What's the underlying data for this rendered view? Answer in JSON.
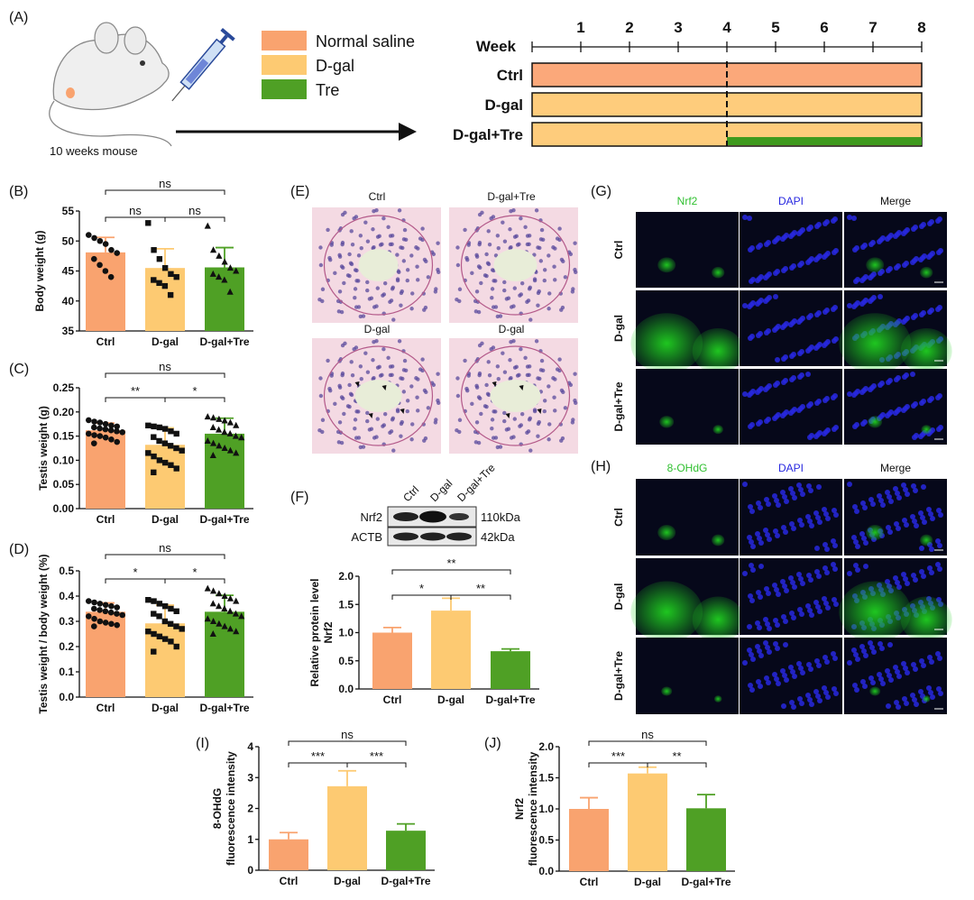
{
  "colors": {
    "saline": "#F9A36F",
    "dgal": "#FDCA72",
    "tre": "#4FA025",
    "tl_ctrl": "#FBA87A",
    "tl_dgal": "#FECC7C",
    "tl_tre": "#3F9A1E",
    "hist_bg": "#F4DAE3",
    "fluor_bg": "#06081a",
    "green": "#30C030",
    "blue": "#2828E0",
    "plain_label": "#111111"
  },
  "panel_labels": {
    "A": "(A)",
    "B": "(B)",
    "C": "(C)",
    "D": "(D)",
    "E": "(E)",
    "F": "(F)",
    "G": "(G)",
    "H": "(H)",
    "I": "(I)",
    "J": "(J)"
  },
  "panel_a": {
    "mouse_label": "10 weeks mouse",
    "legend": [
      {
        "label": "Normal saline",
        "color": "#F9A36F"
      },
      {
        "label": "D-gal",
        "color": "#FDCA72"
      },
      {
        "label": "Tre",
        "color": "#4FA025"
      }
    ],
    "timeline": {
      "axis_label": "Week",
      "weeks": [
        "1",
        "2",
        "3",
        "4",
        "5",
        "6",
        "7",
        "8"
      ],
      "rows": [
        {
          "label": "Ctrl",
          "segments": [
            {
              "from": 0,
              "to": 8,
              "color": "#FBA87A"
            }
          ]
        },
        {
          "label": "D-gal",
          "segments": [
            {
              "from": 0,
              "to": 8,
              "color": "#FECC7C"
            }
          ]
        },
        {
          "label": "D-gal+Tre",
          "segments": [
            {
              "from": 0,
              "to": 8,
              "color": "#FECC7C"
            },
            {
              "from": 4,
              "to": 8,
              "color": "#3F9A1E"
            }
          ]
        }
      ],
      "divider_week": 4
    }
  },
  "panel_e": {
    "labels": [
      "Ctrl",
      "D-gal+Tre",
      "D-gal",
      "D-gal"
    ]
  },
  "panel_f": {
    "lanes": [
      "Ctrl",
      "D-gal",
      "D-gal+Tre"
    ],
    "rows": [
      {
        "name": "Nrf2",
        "size": "110kDa"
      },
      {
        "name": "ACTB",
        "size": "42kDa"
      }
    ]
  },
  "panel_g": {
    "columns": [
      "Nrf2",
      "DAPI",
      "Merge"
    ],
    "rows": [
      "Ctrl",
      "D-gal",
      "D-gal+Tre"
    ]
  },
  "panel_h": {
    "columns": [
      "8-OHdG",
      "DAPI",
      "Merge"
    ],
    "rows": [
      "Ctrl",
      "D-gal",
      "D-gal+Tre"
    ]
  },
  "chart_data": [
    {
      "id": "B",
      "type": "bar",
      "categories": [
        "Ctrl",
        "D-gal",
        "D-gal+Tre"
      ],
      "values": [
        48.1,
        45.5,
        45.6
      ],
      "errors": [
        2.5,
        3.2,
        3.3
      ],
      "ylabel": "Body weight (g)",
      "ylim": [
        35,
        55
      ],
      "yticks": [
        "35",
        "40",
        "45",
        "50",
        "55"
      ],
      "points": [
        [
          51,
          50.5,
          50,
          49.5,
          48.5,
          48,
          47,
          46,
          45,
          44
        ],
        [
          53,
          48.5,
          47,
          45.5,
          44.5,
          44,
          43.5,
          43,
          42.5,
          41
        ],
        [
          52.5,
          48.5,
          47.5,
          46.5,
          45.5,
          45,
          44.5,
          44,
          43.5,
          41.5
        ]
      ],
      "significance": [
        {
          "from": 0,
          "to": 1,
          "label": "ns"
        },
        {
          "from": 1,
          "to": 2,
          "label": "ns"
        },
        {
          "from": 0,
          "to": 2,
          "label": "ns"
        }
      ]
    },
    {
      "id": "C",
      "type": "bar",
      "categories": [
        "Ctrl",
        "D-gal",
        "D-gal+Tre"
      ],
      "values": [
        0.162,
        0.132,
        0.155
      ],
      "errors": [
        0.015,
        0.035,
        0.032
      ],
      "ylabel": "Testis weight (g)",
      "ylim": [
        0,
        0.25
      ],
      "yticks": [
        "0.00",
        "0.05",
        "0.10",
        "0.15",
        "0.20",
        "0.25"
      ],
      "points": [
        [
          0.183,
          0.18,
          0.178,
          0.175,
          0.172,
          0.17,
          0.168,
          0.166,
          0.164,
          0.162,
          0.16,
          0.158,
          0.155,
          0.152,
          0.15,
          0.147,
          0.143,
          0.138,
          0.135
        ],
        [
          0.172,
          0.17,
          0.168,
          0.165,
          0.16,
          0.155,
          0.148,
          0.14,
          0.135,
          0.13,
          0.125,
          0.12,
          0.115,
          0.108,
          0.1,
          0.095,
          0.09,
          0.083,
          0.075
        ],
        [
          0.19,
          0.188,
          0.185,
          0.182,
          0.178,
          0.172,
          0.168,
          0.163,
          0.158,
          0.155,
          0.15,
          0.147,
          0.14,
          0.135,
          0.13,
          0.125,
          0.12,
          0.115,
          0.11
        ]
      ],
      "significance": [
        {
          "from": 0,
          "to": 1,
          "label": "**"
        },
        {
          "from": 1,
          "to": 2,
          "label": "*"
        },
        {
          "from": 0,
          "to": 2,
          "label": "ns"
        }
      ]
    },
    {
      "id": "D",
      "type": "bar",
      "categories": [
        "Ctrl",
        "D-gal",
        "D-gal+Tre"
      ],
      "values": [
        0.338,
        0.292,
        0.338
      ],
      "errors": [
        0.035,
        0.072,
        0.065
      ],
      "ylabel": "Testis weight / body weight (%)",
      "ylim": [
        0,
        0.5
      ],
      "yticks": [
        "0.0",
        "0.1",
        "0.2",
        "0.3",
        "0.4",
        "0.5"
      ],
      "points": [
        [
          0.38,
          0.375,
          0.37,
          0.365,
          0.36,
          0.355,
          0.35,
          0.345,
          0.34,
          0.335,
          0.33,
          0.325,
          0.32,
          0.31,
          0.3,
          0.295,
          0.29,
          0.285,
          0.28
        ],
        [
          0.385,
          0.38,
          0.37,
          0.36,
          0.35,
          0.34,
          0.33,
          0.32,
          0.3,
          0.29,
          0.28,
          0.27,
          0.26,
          0.25,
          0.24,
          0.23,
          0.22,
          0.2,
          0.18
        ],
        [
          0.43,
          0.42,
          0.41,
          0.4,
          0.39,
          0.38,
          0.37,
          0.36,
          0.35,
          0.34,
          0.33,
          0.32,
          0.31,
          0.3,
          0.29,
          0.28,
          0.27,
          0.26,
          0.25
        ]
      ],
      "significance": [
        {
          "from": 0,
          "to": 1,
          "label": "*"
        },
        {
          "from": 1,
          "to": 2,
          "label": "*"
        },
        {
          "from": 0,
          "to": 2,
          "label": "ns"
        }
      ]
    },
    {
      "id": "F",
      "type": "bar",
      "categories": [
        "Ctrl",
        "D-gal",
        "D-gal+Tre"
      ],
      "values": [
        1.0,
        1.39,
        0.67
      ],
      "errors": [
        0.09,
        0.22,
        0.04
      ],
      "ylabel": [
        "Relative protein level",
        "Nrf2"
      ],
      "ylim": [
        0,
        2.0
      ],
      "yticks": [
        "0.0",
        "0.5",
        "1.0",
        "1.5",
        "2.0"
      ],
      "significance": [
        {
          "from": 0,
          "to": 1,
          "label": "*"
        },
        {
          "from": 1,
          "to": 2,
          "label": "**"
        },
        {
          "from": 0,
          "to": 2,
          "label": "**"
        }
      ]
    },
    {
      "id": "I",
      "type": "bar",
      "categories": [
        "Ctrl",
        "D-gal",
        "D-gal+Tre"
      ],
      "values": [
        1.0,
        2.72,
        1.28
      ],
      "errors": [
        0.22,
        0.5,
        0.22
      ],
      "ylabel": [
        "8-OHdG",
        "fluorescence intensity"
      ],
      "ylim": [
        0,
        4
      ],
      "yticks": [
        "0",
        "1",
        "2",
        "3",
        "4"
      ],
      "significance": [
        {
          "from": 0,
          "to": 1,
          "label": "***"
        },
        {
          "from": 1,
          "to": 2,
          "label": "***"
        },
        {
          "from": 0,
          "to": 2,
          "label": "ns"
        }
      ]
    },
    {
      "id": "J",
      "type": "bar",
      "categories": [
        "Ctrl",
        "D-gal",
        "D-gal+Tre"
      ],
      "values": [
        1.0,
        1.57,
        1.01
      ],
      "errors": [
        0.18,
        0.1,
        0.22
      ],
      "ylabel": [
        "Nrf2",
        "fluorescence intensity"
      ],
      "ylim": [
        0,
        2.0
      ],
      "yticks": [
        "0.0",
        "0.5",
        "1.0",
        "1.5",
        "2.0"
      ],
      "significance": [
        {
          "from": 0,
          "to": 1,
          "label": "***"
        },
        {
          "from": 1,
          "to": 2,
          "label": "**"
        },
        {
          "from": 0,
          "to": 2,
          "label": "ns"
        }
      ]
    }
  ]
}
